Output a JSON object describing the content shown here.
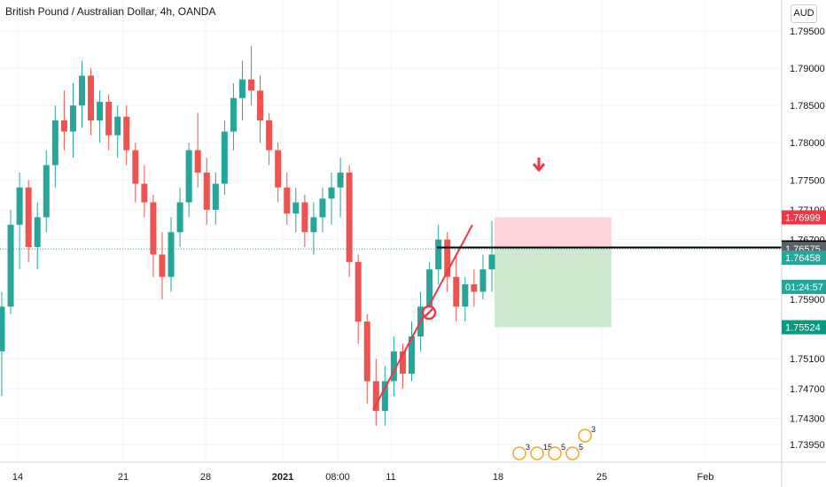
{
  "title": "British Pound / Australian Dollar, 4h, OANDA",
  "currency_button": "AUD",
  "colors": {
    "up": "#26a69a",
    "down": "#ef5350",
    "trendline": "#f23645",
    "stop_zone": "#ffcdd2",
    "target_zone": "#c8e6c9",
    "stop_label": "#f23645",
    "target_label": "#089981",
    "last_price_label": "#26a69a",
    "entry_label": "#000000",
    "prev_close_label": "#5d606b"
  },
  "chart_data": {
    "type": "candlestick",
    "title": "British Pound / Australian Dollar, 4h, OANDA",
    "y_range": [
      1.7365,
      1.7985
    ],
    "y_ticks": [
      "1.79500",
      "1.79000",
      "1.78500",
      "1.78000",
      "1.77500",
      "1.77100",
      "1.76700",
      "1.75900",
      "1.75100",
      "1.74700",
      "1.74300",
      "1.73950"
    ],
    "x_ticks": [
      "14",
      "21",
      "28",
      "2021",
      "08:00",
      "11",
      "18",
      "25",
      "Feb"
    ],
    "candles_range": {
      "first": "14",
      "last": "18"
    },
    "candles": [
      [
        1.752,
        1.76,
        1.746,
        1.758
      ],
      [
        1.758,
        1.771,
        1.757,
        1.769
      ],
      [
        1.769,
        1.776,
        1.763,
        1.774
      ],
      [
        1.774,
        1.775,
        1.764,
        1.766
      ],
      [
        1.766,
        1.772,
        1.763,
        1.77
      ],
      [
        1.77,
        1.779,
        1.768,
        1.777
      ],
      [
        1.777,
        1.785,
        1.774,
        1.783
      ],
      [
        1.783,
        1.787,
        1.779,
        1.7815
      ],
      [
        1.7815,
        1.788,
        1.778,
        1.785
      ],
      [
        1.785,
        1.791,
        1.782,
        1.789
      ],
      [
        1.789,
        1.79,
        1.781,
        1.783
      ],
      [
        1.783,
        1.787,
        1.78,
        1.7855
      ],
      [
        1.7855,
        1.7865,
        1.779,
        1.781
      ],
      [
        1.781,
        1.785,
        1.778,
        1.7835
      ],
      [
        1.7835,
        1.785,
        1.777,
        1.779
      ],
      [
        1.779,
        1.78,
        1.772,
        1.7745
      ],
      [
        1.7745,
        1.777,
        1.77,
        1.772
      ],
      [
        1.772,
        1.773,
        1.762,
        1.765
      ],
      [
        1.765,
        1.768,
        1.759,
        1.762
      ],
      [
        1.762,
        1.77,
        1.76,
        1.768
      ],
      [
        1.768,
        1.774,
        1.766,
        1.772
      ],
      [
        1.772,
        1.78,
        1.77,
        1.779
      ],
      [
        1.779,
        1.784,
        1.774,
        1.776
      ],
      [
        1.776,
        1.778,
        1.769,
        1.771
      ],
      [
        1.771,
        1.776,
        1.769,
        1.7745
      ],
      [
        1.7745,
        1.783,
        1.773,
        1.7815
      ],
      [
        1.7815,
        1.788,
        1.779,
        1.786
      ],
      [
        1.786,
        1.791,
        1.783,
        1.7885
      ],
      [
        1.7885,
        1.793,
        1.785,
        1.787
      ],
      [
        1.787,
        1.789,
        1.78,
        1.783
      ],
      [
        1.783,
        1.784,
        1.777,
        1.779
      ],
      [
        1.779,
        1.78,
        1.772,
        1.774
      ],
      [
        1.774,
        1.776,
        1.769,
        1.7705
      ],
      [
        1.7705,
        1.774,
        1.768,
        1.772
      ],
      [
        1.772,
        1.773,
        1.766,
        1.768
      ],
      [
        1.768,
        1.772,
        1.765,
        1.77
      ],
      [
        1.77,
        1.774,
        1.768,
        1.7725
      ],
      [
        1.7725,
        1.776,
        1.769,
        1.774
      ],
      [
        1.774,
        1.778,
        1.77,
        1.776
      ],
      [
        1.776,
        1.777,
        1.762,
        1.764
      ],
      [
        1.764,
        1.765,
        1.753,
        1.756
      ],
      [
        1.756,
        1.757,
        1.745,
        1.748
      ],
      [
        1.748,
        1.751,
        1.742,
        1.744
      ],
      [
        1.744,
        1.75,
        1.742,
        1.748
      ],
      [
        1.748,
        1.754,
        1.746,
        1.752
      ],
      [
        1.752,
        1.753,
        1.747,
        1.749
      ],
      [
        1.749,
        1.756,
        1.748,
        1.754
      ],
      [
        1.754,
        1.76,
        1.752,
        1.758
      ],
      [
        1.758,
        1.764,
        1.757,
        1.763
      ],
      [
        1.763,
        1.769,
        1.761,
        1.767
      ],
      [
        1.767,
        1.768,
        1.76,
        1.762
      ],
      [
        1.762,
        1.765,
        1.756,
        1.758
      ],
      [
        1.758,
        1.762,
        1.756,
        1.761
      ],
      [
        1.761,
        1.763,
        1.758,
        1.76
      ],
      [
        1.76,
        1.765,
        1.759,
        1.763
      ],
      [
        1.763,
        1.7695,
        1.76,
        1.765
      ]
    ],
    "annotations": {
      "stop_level": 1.76999,
      "entry_level": 1.76595,
      "prev_close": 1.76575,
      "last_price": 1.76458,
      "target_level": 1.75524,
      "countdown": "01:24:57"
    }
  },
  "price_labels": {
    "stop": "1.76999",
    "entry": "1.76595",
    "prev": "1.76575",
    "last": "1.76458",
    "countdown": "01:24:57",
    "target": "1.75524"
  },
  "events": {
    "badges": [
      "3",
      "15",
      "5",
      "5",
      "3"
    ]
  }
}
